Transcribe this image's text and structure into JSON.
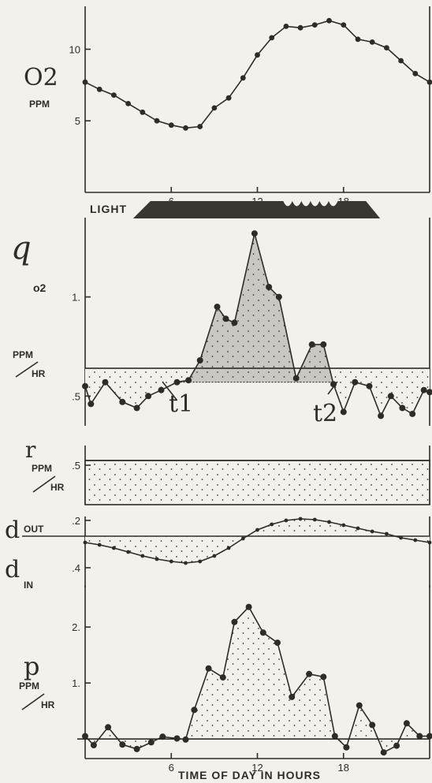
{
  "chart_data": [
    {
      "type": "line",
      "panel": "o2",
      "ylabel": [
        "O2",
        "PPM"
      ],
      "x_ticks": [
        6,
        12,
        18
      ],
      "y_ticks": [
        5,
        10
      ],
      "xlim": [
        0,
        24
      ],
      "ylim": [
        0,
        13
      ],
      "series": [
        {
          "x": [
            0,
            1,
            2,
            3,
            4,
            5,
            6,
            7,
            8,
            9,
            10,
            11,
            12,
            13,
            14,
            15,
            16,
            17,
            18,
            19,
            20,
            21,
            22,
            23,
            24
          ],
          "values": [
            7.7,
            7.2,
            6.8,
            6.2,
            5.6,
            5.0,
            4.7,
            4.5,
            4.6,
            5.9,
            6.6,
            8.0,
            9.6,
            10.8,
            11.6,
            11.5,
            11.7,
            12.0,
            11.7,
            10.7,
            10.5,
            10.1,
            9.2,
            8.3,
            7.7
          ]
        }
      ],
      "light_bar": {
        "label": "LIGHT",
        "start": 4,
        "end": 20
      }
    },
    {
      "type": "area",
      "panel": "q",
      "ylabel": [
        "q",
        "o2",
        "PPM",
        "HR"
      ],
      "y_ticks": [
        0.5,
        1.0
      ],
      "y_tick_labels": [
        ".5",
        "1."
      ],
      "ylim": [
        0.35,
        1.4
      ],
      "reference_line": 0.64,
      "markers": [
        "t1",
        "t2"
      ],
      "series": [
        {
          "x": [
            0,
            0.4,
            1.4,
            2.6,
            3.6,
            4.4,
            5.3,
            6.4,
            7.2,
            8.0,
            9.2,
            9.8,
            10.4,
            11.8,
            12.8,
            13.5,
            14.7,
            15.8,
            16.6,
            17.3,
            18.0,
            18.8,
            19.8,
            20.6,
            21.3,
            22.1,
            22.8,
            23.6,
            24.0
          ],
          "values": [
            0.55,
            0.46,
            0.57,
            0.47,
            0.44,
            0.5,
            0.53,
            0.57,
            0.58,
            0.68,
            0.95,
            0.89,
            0.87,
            1.32,
            1.05,
            1.0,
            0.59,
            0.76,
            0.76,
            0.56,
            0.42,
            0.57,
            0.55,
            0.4,
            0.5,
            0.44,
            0.41,
            0.53,
            0.52
          ]
        }
      ]
    },
    {
      "type": "area",
      "panel": "r",
      "ylabel": [
        "r",
        "PPM",
        "HR"
      ],
      "y_ticks": [
        0.5
      ],
      "y_tick_labels": [
        ".5"
      ],
      "ylim": [
        0,
        0.75
      ],
      "series": [
        {
          "x": [
            0,
            24
          ],
          "values": [
            0.56,
            0.56
          ]
        }
      ]
    },
    {
      "type": "line",
      "panel": "d",
      "ylabel": [
        "d",
        "OUT",
        "d",
        "IN"
      ],
      "y_ticks": [
        -0.2,
        0.4
      ],
      "y_tick_labels": [
        ".2",
        ".4"
      ],
      "series": [
        {
          "x": [
            0,
            1,
            2,
            3,
            4,
            5,
            6,
            7,
            8,
            9,
            10,
            11,
            12,
            13,
            14,
            15,
            16,
            17,
            18,
            19,
            20,
            21,
            22,
            23,
            24
          ],
          "values": [
            0.08,
            0.11,
            0.15,
            0.2,
            0.25,
            0.29,
            0.32,
            0.34,
            0.32,
            0.25,
            0.15,
            0.03,
            -0.08,
            -0.15,
            -0.2,
            -0.22,
            -0.21,
            -0.18,
            -0.14,
            -0.1,
            -0.06,
            -0.03,
            0.02,
            0.05,
            0.08
          ]
        }
      ]
    },
    {
      "type": "area",
      "panel": "p",
      "ylabel": [
        "p",
        "PPM",
        "HR"
      ],
      "x_ticks": [
        6,
        12,
        18
      ],
      "y_ticks": [
        1,
        2
      ],
      "y_tick_labels": [
        "1.",
        "2."
      ],
      "xlabel": "TIME OF DAY IN HOURS",
      "ylim": [
        -0.35,
        2.75
      ],
      "series": [
        {
          "x": [
            0,
            0.6,
            1.6,
            2.6,
            3.6,
            4.6,
            5.4,
            6.4,
            7.0,
            7.6,
            8.6,
            9.6,
            10.4,
            11.4,
            12.4,
            13.4,
            14.4,
            15.6,
            16.6,
            17.4,
            18.2,
            19.1,
            20.0,
            20.8,
            21.7,
            22.4,
            23.3,
            24.0
          ],
          "values": [
            0.05,
            -0.11,
            0.21,
            -0.1,
            -0.18,
            -0.06,
            0.04,
            0.01,
            -0.01,
            0.52,
            1.26,
            1.1,
            2.09,
            2.36,
            1.9,
            1.72,
            0.75,
            1.16,
            1.11,
            0.05,
            -0.15,
            0.6,
            0.25,
            -0.24,
            -0.12,
            0.28,
            0.05,
            0.05
          ]
        }
      ]
    }
  ]
}
